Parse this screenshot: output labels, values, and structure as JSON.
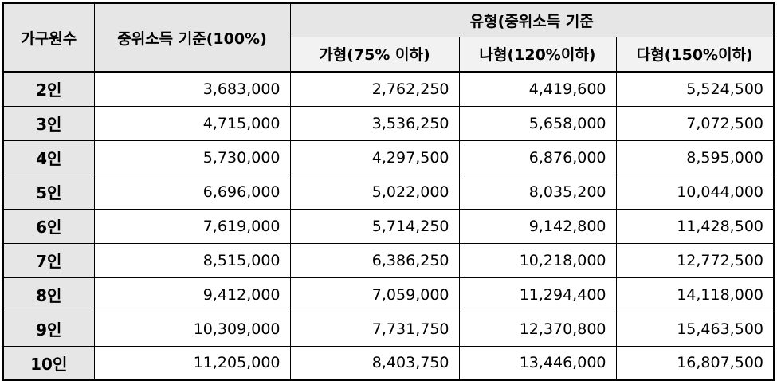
{
  "header": {
    "household_size": "가구원수",
    "median_income": "중위소득 기준(100%)",
    "type_group": "유형(중위소득 기준",
    "type_a": "가형(75% 이하)",
    "type_b": "나형(120%이하)",
    "type_c": "다형(150%이하)"
  },
  "rows": [
    {
      "size": "2인",
      "median": "3,683,000",
      "a": "2,762,250",
      "b": "4,419,600",
      "c": "5,524,500"
    },
    {
      "size": "3인",
      "median": "4,715,000",
      "a": "3,536,250",
      "b": "5,658,000",
      "c": "7,072,500"
    },
    {
      "size": "4인",
      "median": "5,730,000",
      "a": "4,297,500",
      "b": "6,876,000",
      "c": "8,595,000"
    },
    {
      "size": "5인",
      "median": "6,696,000",
      "a": "5,022,000",
      "b": "8,035,200",
      "c": "10,044,000"
    },
    {
      "size": "6인",
      "median": "7,619,000",
      "a": "5,714,250",
      "b": "9,142,800",
      "c": "11,428,500"
    },
    {
      "size": "7인",
      "median": "8,515,000",
      "a": "6,386,250",
      "b": "10,218,000",
      "c": "12,772,500"
    },
    {
      "size": "8인",
      "median": "9,412,000",
      "a": "7,059,000",
      "b": "11,294,400",
      "c": "14,118,000"
    },
    {
      "size": "9인",
      "median": "10,309,000",
      "a": "7,731,750",
      "b": "12,370,800",
      "c": "15,463,500"
    },
    {
      "size": "10인",
      "median": "11,205,000",
      "a": "8,403,750",
      "b": "13,446,000",
      "c": "16,807,500"
    }
  ]
}
